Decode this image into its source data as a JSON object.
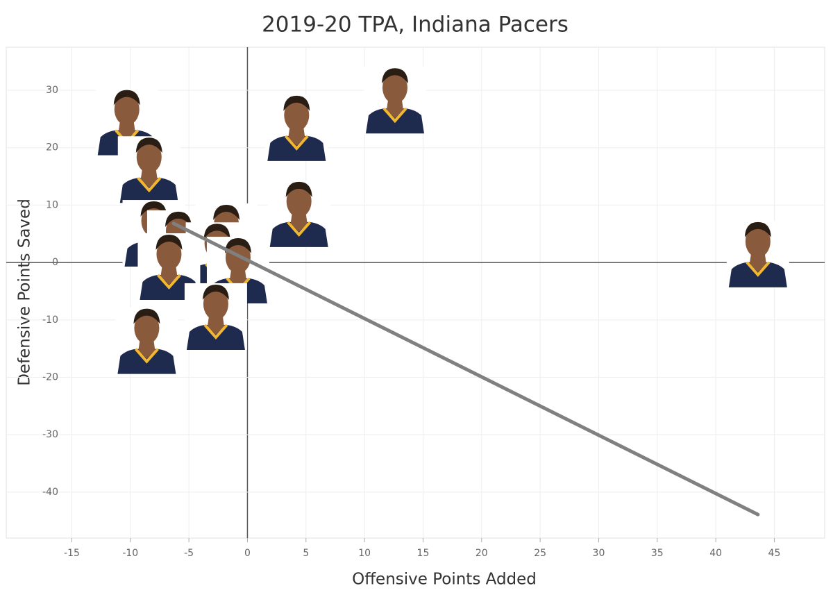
{
  "chart_data": {
    "type": "scatter",
    "title": "2019-20 TPA, Indiana Pacers",
    "xlabel": "Offensive Points Added",
    "ylabel": "Defensive Points Saved",
    "x": [
      -10.3,
      12.6,
      4.2,
      -8.4,
      4.4,
      43.6,
      -8.0,
      -5.9,
      -1.8,
      -2.6,
      -6.7,
      -0.8,
      -2.7,
      -8.6
    ],
    "y": [
      24.0,
      27.8,
      23.0,
      15.7,
      8.0,
      1.0,
      4.6,
      2.8,
      4.0,
      0.7,
      -1.2,
      -1.8,
      -9.9,
      -14.1
    ],
    "trendline": {
      "x": [
        -6.3,
        43.6
      ],
      "y": [
        6.8,
        -43.9
      ],
      "color": "#808080"
    },
    "xlim": [
      -20.6,
      49.3
    ],
    "ylim": [
      -48.0,
      37.5
    ],
    "xticks": [
      -15,
      -10,
      -5,
      0,
      5,
      10,
      15,
      20,
      25,
      30,
      35,
      40,
      45
    ],
    "yticks": [
      -40,
      -30,
      -20,
      -10,
      0,
      10,
      20,
      30
    ],
    "grid": true,
    "marker_colors": {
      "jersey": "#1e2a4e",
      "trim": "#f2b731",
      "skin": "#8a5a3c"
    }
  }
}
